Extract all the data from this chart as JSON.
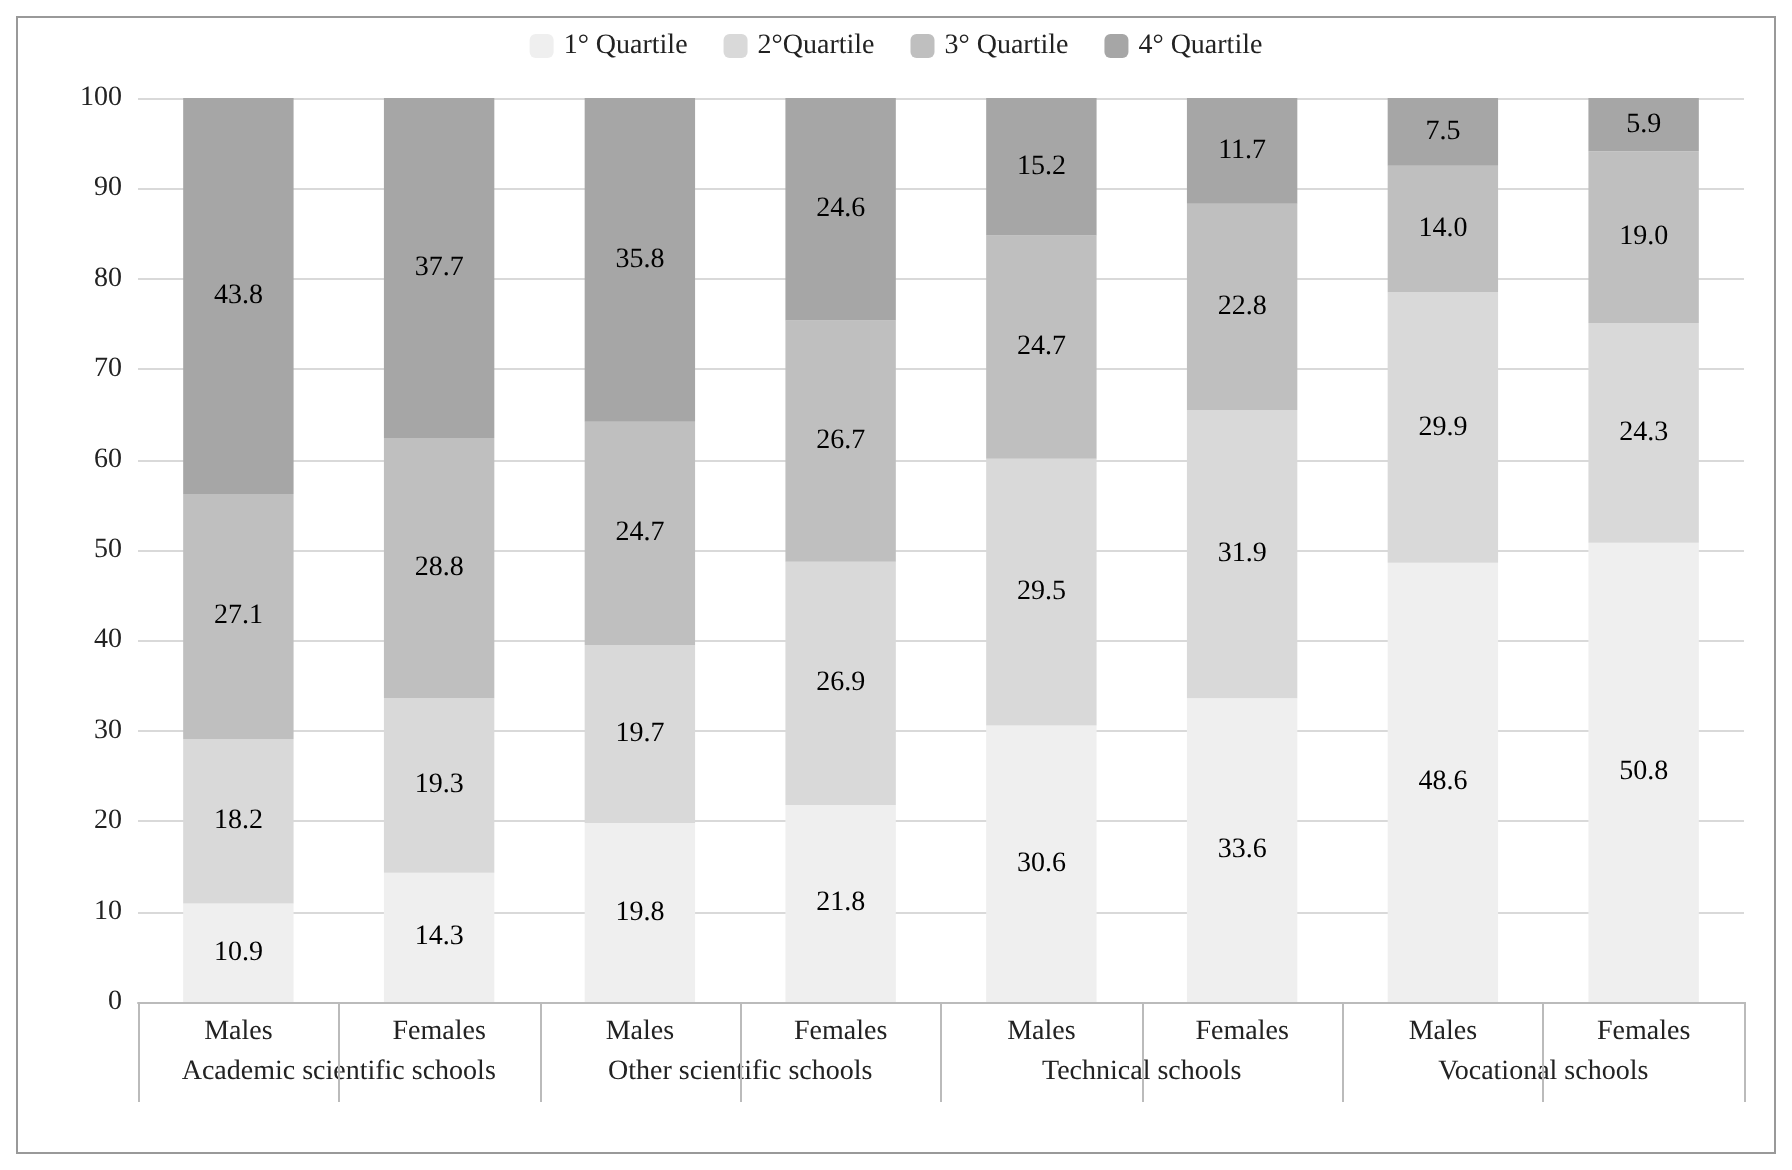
{
  "chart_data": {
    "type": "bar",
    "stacked": true,
    "categories": [
      "Males",
      "Females",
      "Males",
      "Females",
      "Males",
      "Females",
      "Males",
      "Females"
    ],
    "series": [
      {
        "name": "1° Quartile",
        "color": "#efefef",
        "values": [
          10.9,
          14.3,
          19.8,
          21.8,
          30.6,
          33.6,
          48.6,
          50.8
        ],
        "value_labels": [
          "10.9",
          "14.3",
          "19.8",
          "21.8",
          "30.6",
          "33.6",
          "48.6",
          "50.8"
        ]
      },
      {
        "name": "2°Quartile",
        "color": "#d9d9d9",
        "values": [
          18.2,
          19.3,
          19.7,
          26.9,
          29.5,
          31.9,
          29.9,
          24.3
        ],
        "value_labels": [
          "18.2",
          "19.3",
          "19.7",
          "26.9",
          "29.5",
          "31.9",
          "29.9",
          "24.3"
        ]
      },
      {
        "name": "3° Quartile",
        "color": "#bfbfbf",
        "values": [
          27.1,
          28.8,
          24.7,
          26.7,
          24.7,
          22.8,
          14.0,
          19.0
        ],
        "value_labels": [
          "27.1",
          "28.8",
          "24.7",
          "26.7",
          "24.7",
          "22.8",
          "14.0",
          "19.0"
        ]
      },
      {
        "name": "4° Quartile",
        "color": "#a6a6a6",
        "values": [
          43.8,
          37.7,
          35.8,
          24.6,
          15.2,
          11.7,
          7.5,
          5.9
        ],
        "value_labels": [
          "43.8",
          "37.7",
          "35.8",
          "24.6",
          "15.2",
          "11.7",
          "7.5",
          "5.9"
        ]
      }
    ],
    "annotations": [
      "Academic scientific schools",
      "Other scientific schools",
      "Technical schools",
      "Vocational schools"
    ],
    "ylim": [
      0,
      100
    ],
    "yticks": [
      0,
      10,
      20,
      30,
      40,
      50,
      60,
      70,
      80,
      90,
      100
    ],
    "grid": "y",
    "legend": "top"
  }
}
